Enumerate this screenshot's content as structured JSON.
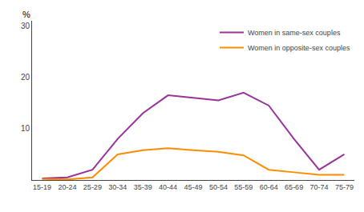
{
  "chart_data": {
    "type": "line",
    "ylabel": "%",
    "categories": [
      "15-19",
      "20-24",
      "25-29",
      "30-34",
      "35-39",
      "40-44",
      "45-49",
      "50-54",
      "55-59",
      "60-64",
      "65-69",
      "70-74",
      "75-79"
    ],
    "series": [
      {
        "name": "Women in same-sex couples",
        "color": "#993399",
        "values": [
          0.3,
          0.5,
          2.0,
          8.0,
          13.0,
          16.5,
          16.0,
          15.5,
          17.0,
          14.5,
          8.0,
          2.0,
          5.0
        ]
      },
      {
        "name": "Women in opposite-sex couples",
        "color": "#FF8C00",
        "values": [
          0.2,
          0.1,
          0.5,
          5.0,
          5.8,
          6.2,
          5.8,
          5.5,
          4.8,
          2.0,
          1.5,
          1.0,
          1.0
        ]
      }
    ],
    "ylim": [
      0,
      31
    ],
    "yticks": [
      10,
      20,
      30
    ],
    "grid": false,
    "legend": "upper right"
  }
}
